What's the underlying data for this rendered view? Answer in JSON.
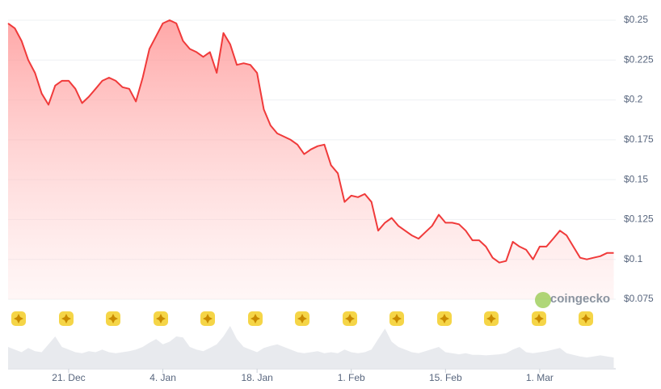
{
  "chart_data": {
    "type": "area",
    "x": [
      0,
      1,
      2,
      3,
      4,
      5,
      6,
      7,
      8,
      9,
      10,
      11,
      12,
      13,
      14,
      15,
      16,
      17,
      18,
      19,
      20,
      21,
      22,
      23,
      24,
      25,
      26,
      27,
      28,
      29,
      30,
      31,
      32,
      33,
      34,
      35,
      36,
      37,
      38,
      39,
      40,
      41,
      42,
      43,
      44,
      45,
      46,
      47,
      48,
      49,
      50,
      51,
      52,
      53,
      54,
      55,
      56,
      57,
      58,
      59,
      60,
      61,
      62,
      63,
      64,
      65,
      66,
      67,
      68,
      69,
      70,
      71,
      72,
      73,
      74,
      75,
      76,
      77,
      78,
      79,
      80,
      81,
      82,
      83,
      84,
      85,
      86,
      87,
      88,
      89,
      90
    ],
    "xlim": [
      0,
      90.3
    ],
    "xticks": [
      {
        "value": 9,
        "label": "21. Dec"
      },
      {
        "value": 23,
        "label": "4. Jan"
      },
      {
        "value": 37,
        "label": "18. Jan"
      },
      {
        "value": 51,
        "label": "1. Feb"
      },
      {
        "value": 65,
        "label": "15. Feb"
      },
      {
        "value": 79,
        "label": "1. Mar"
      }
    ],
    "ylim": [
      0.075,
      0.25
    ],
    "yticks": [
      {
        "value": 0.25,
        "label": "$0.25"
      },
      {
        "value": 0.225,
        "label": "$0.225"
      },
      {
        "value": 0.2,
        "label": "$0.2"
      },
      {
        "value": 0.175,
        "label": "$0.175"
      },
      {
        "value": 0.15,
        "label": "$0.15"
      },
      {
        "value": 0.125,
        "label": "$0.125"
      },
      {
        "value": 0.1,
        "label": "$0.1"
      },
      {
        "value": 0.075,
        "label": "$0.075"
      }
    ],
    "grid": true,
    "series": [
      {
        "color": "#f03a3a",
        "values": [
          0.248,
          0.245,
          0.237,
          0.225,
          0.217,
          0.204,
          0.197,
          0.209,
          0.212,
          0.212,
          0.207,
          0.198,
          0.202,
          0.207,
          0.212,
          0.214,
          0.212,
          0.208,
          0.207,
          0.199,
          0.214,
          0.232,
          0.24,
          0.248,
          0.25,
          0.248,
          0.237,
          0.232,
          0.23,
          0.227,
          0.23,
          0.217,
          0.242,
          0.235,
          0.222,
          0.223,
          0.222,
          0.217,
          0.194,
          0.184,
          0.179,
          0.177,
          0.175,
          0.172,
          0.166,
          0.169,
          0.171,
          0.172,
          0.159,
          0.154,
          0.136,
          0.14,
          0.139,
          0.141,
          0.136,
          0.118,
          0.123,
          0.126,
          0.121,
          0.118,
          0.115,
          0.113,
          0.117,
          0.121,
          0.128,
          0.123,
          0.123,
          0.122,
          0.118,
          0.112,
          0.112,
          0.108,
          0.101,
          0.098,
          0.099,
          0.111,
          0.108,
          0.106,
          0.1,
          0.108,
          0.108,
          0.113,
          0.118,
          0.115,
          0.108,
          0.101,
          0.1,
          0.101,
          0.102,
          0.104,
          0.104
        ]
      }
    ],
    "volume": {
      "color": "#e8eaee",
      "ylim": [
        0,
        100
      ],
      "values": [
        40,
        35,
        30,
        38,
        32,
        30,
        45,
        60,
        40,
        35,
        30,
        28,
        32,
        30,
        35,
        30,
        28,
        30,
        32,
        35,
        40,
        48,
        55,
        45,
        50,
        60,
        58,
        40,
        35,
        32,
        38,
        45,
        60,
        80,
        55,
        40,
        35,
        30,
        38,
        42,
        45,
        40,
        35,
        30,
        28,
        30,
        32,
        28,
        30,
        28,
        35,
        30,
        28,
        30,
        35,
        55,
        75,
        50,
        40,
        35,
        30,
        28,
        32,
        36,
        40,
        30,
        28,
        26,
        28,
        25,
        25,
        24,
        25,
        26,
        28,
        35,
        40,
        30,
        28,
        30,
        32,
        35,
        38,
        28,
        25,
        22,
        20,
        22,
        24,
        22,
        20
      ]
    },
    "watermark": "coingecko"
  }
}
